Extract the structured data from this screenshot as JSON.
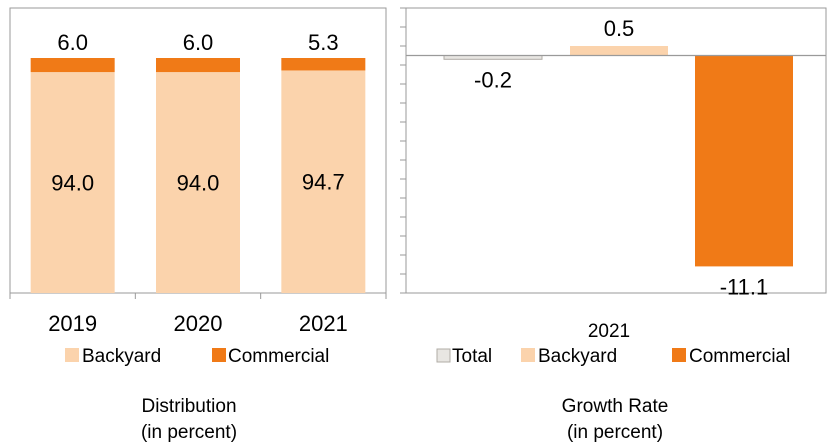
{
  "colors": {
    "backyard": "#fbd3ac",
    "commercial": "#f07a17",
    "total": "#e8e6e2",
    "axis": "#9a9a9a"
  },
  "chart_data": [
    {
      "type": "bar",
      "stacked": true,
      "categories": [
        "2019",
        "2020",
        "2021"
      ],
      "series": [
        {
          "name": "Backyard",
          "values": [
            94.0,
            94.0,
            94.7
          ]
        },
        {
          "name": "Commercial",
          "values": [
            6.0,
            6.0,
            5.3
          ]
        }
      ],
      "data_labels": [
        {
          "backyard": "94.0",
          "commercial": "6.0"
        },
        {
          "backyard": "94.0",
          "commercial": "6.0"
        },
        {
          "backyard": "94.7",
          "commercial": "5.3"
        }
      ],
      "ylim": [
        0,
        100
      ],
      "title": "Distribution",
      "subtitle": "(in percent)",
      "legend_position": "bottom",
      "grid": false
    },
    {
      "type": "bar",
      "categories": [
        "2021"
      ],
      "series": [
        {
          "name": "Total",
          "values": [
            -0.2
          ],
          "label": "-0.2"
        },
        {
          "name": "Backyard",
          "values": [
            0.5
          ],
          "label": "0.5"
        },
        {
          "name": "Commercial",
          "values": [
            -11.1
          ],
          "label": "-11.1"
        }
      ],
      "ylim": [
        -12.5,
        2.5
      ],
      "y_tick_step": 1,
      "title": "Growth Rate",
      "subtitle": "(in percent)",
      "legend_position": "bottom",
      "grid": false
    }
  ]
}
